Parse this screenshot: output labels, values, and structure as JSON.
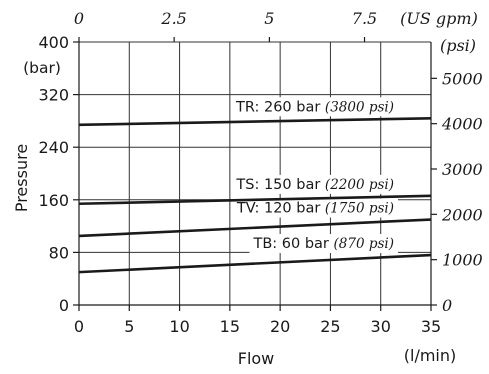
{
  "chart_data": {
    "type": "line",
    "xlabel": "Flow",
    "x_unit": "(l/min)",
    "ylabel": "Pressure",
    "y_unit": "(bar)",
    "xlim": [
      0,
      35
    ],
    "ylim": [
      0,
      400
    ],
    "x_ticks": [
      0,
      5,
      10,
      15,
      20,
      25,
      30,
      35
    ],
    "y_ticks": [
      0,
      80,
      160,
      240,
      320,
      400
    ],
    "top_axis": {
      "unit": "(US gpm)",
      "ticks": [
        "0",
        "2.5",
        "5",
        "7.5"
      ],
      "values_lpm": [
        0,
        9.46,
        18.93,
        28.39
      ]
    },
    "right_axis": {
      "unit": "(psi)",
      "ticks": [
        "0",
        "1000",
        "2000",
        "3000",
        "4000",
        "5000"
      ],
      "values_bar": [
        0,
        68.95,
        137.9,
        206.84,
        275.79,
        344.74
      ]
    },
    "grid": true,
    "series": [
      {
        "name": "TR",
        "label": "TR: 260 bar",
        "label_alt": "(3800 psi)",
        "x": [
          0,
          35
        ],
        "y": [
          274,
          284
        ]
      },
      {
        "name": "TS",
        "label": "TS: 150 bar",
        "label_alt": "(2200 psi)",
        "x": [
          0,
          35
        ],
        "y": [
          154,
          166
        ]
      },
      {
        "name": "TV",
        "label": "TV: 120 bar",
        "label_alt": "(1750 psi)",
        "x": [
          0,
          35
        ],
        "y": [
          105,
          130
        ]
      },
      {
        "name": "TB",
        "label": "TB: 60 bar",
        "label_alt": "(870 psi)",
        "x": [
          0,
          35
        ],
        "y": [
          50,
          76
        ]
      }
    ]
  }
}
